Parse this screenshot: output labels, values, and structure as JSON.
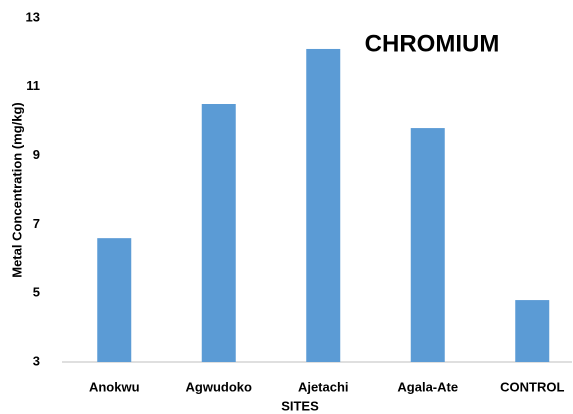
{
  "chart_data": {
    "type": "bar",
    "title": "CHROMIUM",
    "x_label": "SITES",
    "y_label": "Metal Concentration (mg/kg)",
    "categories": [
      "Anokwu",
      "Agwudoko",
      "Ajetachi",
      "Agala-Ate",
      "CONTROL"
    ],
    "values": [
      6.6,
      10.5,
      12.1,
      9.8,
      4.8
    ],
    "color": "#5b9bd5",
    "ylim": [
      3,
      13
    ],
    "yticks": [
      3,
      5,
      7,
      9,
      11,
      13
    ],
    "grid": false
  }
}
